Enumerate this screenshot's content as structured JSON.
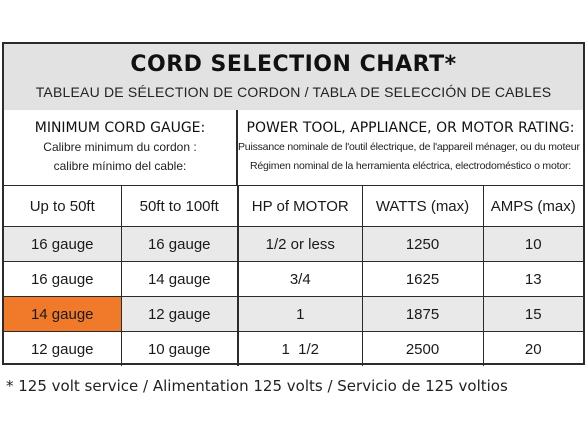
{
  "title": "CORD SELECTION CHART*",
  "subtitle": "TABLEAU DE SÉLECTION DE CORDON / TABLA DE SELECCIÓN DE CABLES",
  "left_header": {
    "heading": "MINIMUM CORD GAUGE:",
    "line1": "Calibre minimum du cordon :",
    "line2": "calibre mínimo del cable:"
  },
  "right_header": {
    "heading": "POWER TOOL, APPLIANCE, OR MOTOR RATING:",
    "line1": "Puissance nominale de l'outil électrique, de l'appareil ménager, ou du moteur :",
    "line2": "Régimen nominal de la herramienta eléctrica, electrodoméstico o motor:"
  },
  "columns": [
    "Up to 50ft",
    "50ft to 100ft",
    "HP of MOTOR",
    "WATTS (max)",
    "AMPS (max)"
  ],
  "rows": [
    [
      "16 gauge",
      "16 gauge",
      "1/2 or less",
      "1250",
      "10"
    ],
    [
      "16 gauge",
      "14 gauge",
      "3/4",
      "1625",
      "13"
    ],
    [
      "14 gauge",
      "12 gauge",
      "1",
      "1875",
      "15"
    ],
    [
      "12 gauge",
      "10 gauge",
      "1  1/2",
      "2500",
      "20"
    ]
  ],
  "highlight_color": "#f07a2a",
  "footnote": "* 125 volt service / Alimentation 125 volts / Servicio de 125 voltios"
}
